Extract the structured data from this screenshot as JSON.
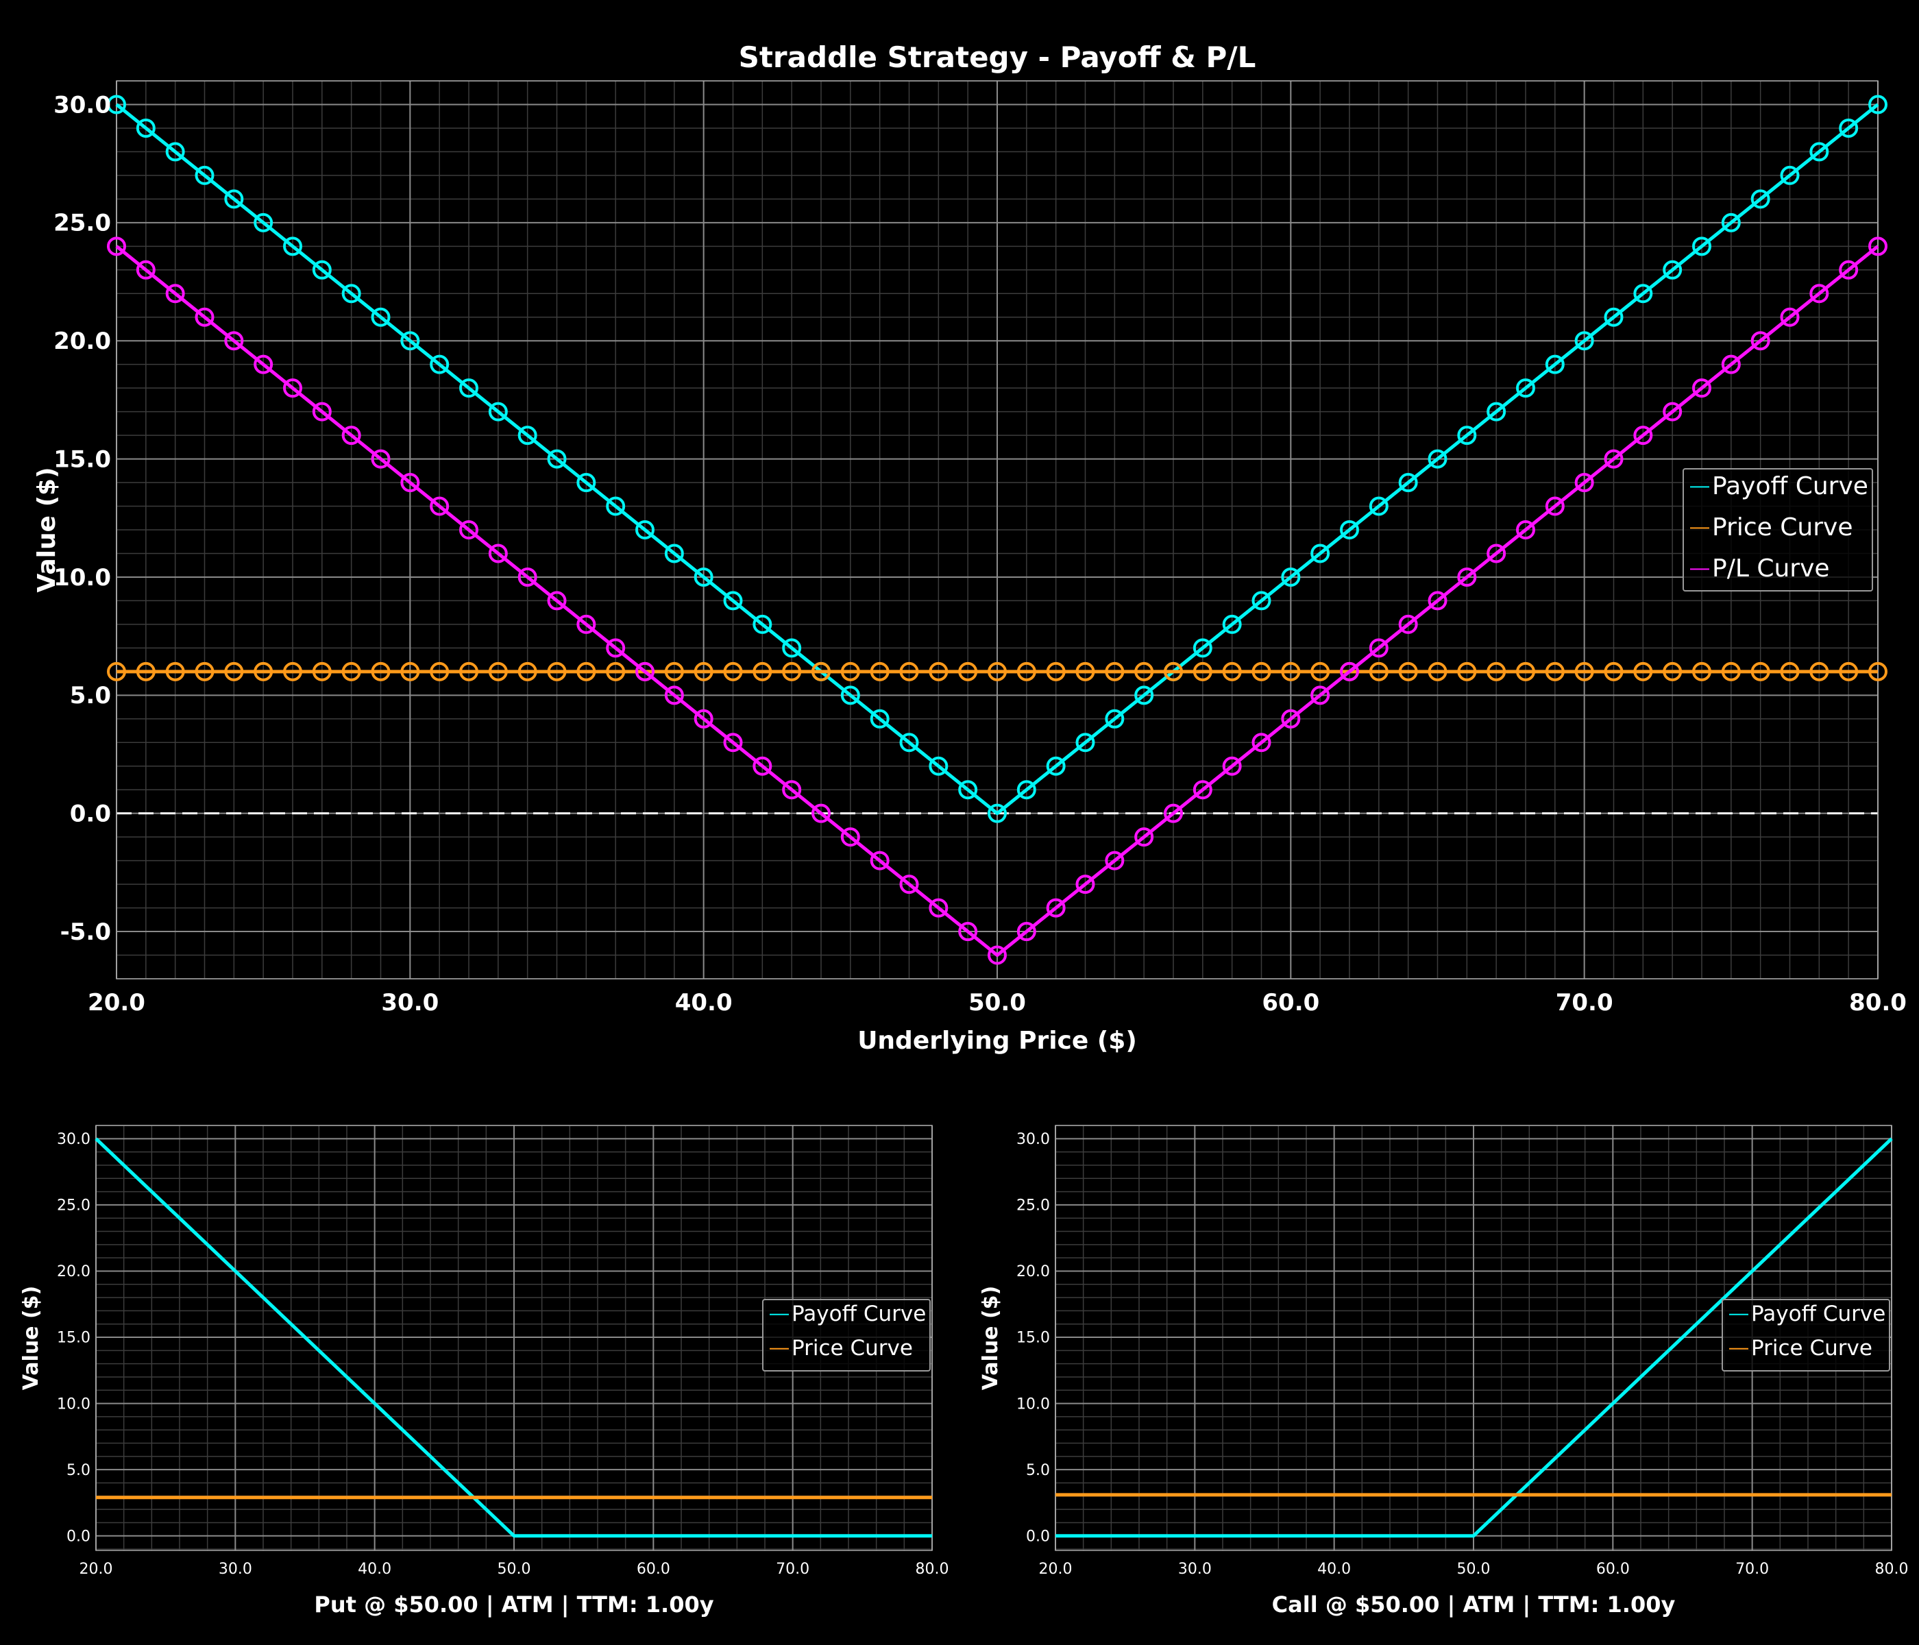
{
  "colors": {
    "background": "#000000",
    "payoff": "#00f5f5",
    "price": "#ff9a1a",
    "pl": "#ff10ff",
    "grid_major": "#8a8a8a",
    "grid_minor": "#3c3c3c",
    "zero_line": "#ffffff"
  },
  "chart_data": [
    {
      "type": "line",
      "title": "Straddle Strategy - Payoff & P/L",
      "xlabel": "Underlying Price ($)",
      "ylabel": "Value ($)",
      "xlim": [
        20,
        80
      ],
      "ylim": [
        -7,
        31
      ],
      "x_ticks": [
        "20.0",
        "30.0",
        "40.0",
        "50.0",
        "60.0",
        "70.0",
        "80.0"
      ],
      "y_ticks": [
        "-5.0",
        "0.0",
        "5.0",
        "10.0",
        "15.0",
        "20.0",
        "25.0",
        "30.0"
      ],
      "grid": true,
      "zero_line": "dashed",
      "legend": "center-right",
      "markers": "circle",
      "x": [
        20,
        21,
        22,
        23,
        24,
        25,
        26,
        27,
        28,
        29,
        30,
        31,
        32,
        33,
        34,
        35,
        36,
        37,
        38,
        39,
        40,
        41,
        42,
        43,
        44,
        45,
        46,
        47,
        48,
        49,
        50,
        51,
        52,
        53,
        54,
        55,
        56,
        57,
        58,
        59,
        60,
        61,
        62,
        63,
        64,
        65,
        66,
        67,
        68,
        69,
        70,
        71,
        72,
        73,
        74,
        75,
        76,
        77,
        78,
        79,
        80
      ],
      "series": [
        {
          "name": "Payoff Curve",
          "color": "#00f5f5",
          "values": [
            30,
            29,
            28,
            27,
            26,
            25,
            24,
            23,
            22,
            21,
            20,
            19,
            18,
            17,
            16,
            15,
            14,
            13,
            12,
            11,
            10,
            9,
            8,
            7,
            6,
            5,
            4,
            3,
            2,
            1,
            0,
            1,
            2,
            3,
            4,
            5,
            6,
            7,
            8,
            9,
            10,
            11,
            12,
            13,
            14,
            15,
            16,
            17,
            18,
            19,
            20,
            21,
            22,
            23,
            24,
            25,
            26,
            27,
            28,
            29,
            30
          ]
        },
        {
          "name": "Price Curve",
          "color": "#ff9a1a",
          "values": [
            6,
            6,
            6,
            6,
            6,
            6,
            6,
            6,
            6,
            6,
            6,
            6,
            6,
            6,
            6,
            6,
            6,
            6,
            6,
            6,
            6,
            6,
            6,
            6,
            6,
            6,
            6,
            6,
            6,
            6,
            6,
            6,
            6,
            6,
            6,
            6,
            6,
            6,
            6,
            6,
            6,
            6,
            6,
            6,
            6,
            6,
            6,
            6,
            6,
            6,
            6,
            6,
            6,
            6,
            6,
            6,
            6,
            6,
            6,
            6,
            6
          ]
        },
        {
          "name": "P/L Curve",
          "color": "#ff10ff",
          "values": [
            24,
            23,
            22,
            21,
            20,
            19,
            18,
            17,
            16,
            15,
            14,
            13,
            12,
            11,
            10,
            9,
            8,
            7,
            6,
            5,
            4,
            3,
            2,
            1,
            0,
            -1,
            -2,
            -3,
            -4,
            -5,
            -6,
            -5,
            -4,
            -3,
            -2,
            -1,
            0,
            1,
            2,
            3,
            4,
            5,
            6,
            7,
            8,
            9,
            10,
            11,
            12,
            13,
            14,
            15,
            16,
            17,
            18,
            19,
            20,
            21,
            22,
            23,
            24
          ]
        }
      ]
    },
    {
      "type": "line",
      "title": "Put @ $50.00 | ATM | TTM: 1.00y",
      "xlabel": "",
      "ylabel": "Value ($)",
      "xlim": [
        20,
        80
      ],
      "ylim": [
        -1.1,
        31
      ],
      "x_ticks": [
        "20.0",
        "30.0",
        "40.0",
        "50.0",
        "60.0",
        "70.0",
        "80.0"
      ],
      "y_ticks": [
        "0.0",
        "5.0",
        "10.0",
        "15.0",
        "20.0",
        "25.0",
        "30.0"
      ],
      "grid": true,
      "legend": "center-right",
      "x": [
        20,
        50,
        80
      ],
      "series": [
        {
          "name": "Payoff Curve",
          "color": "#00f5f5",
          "values": [
            30,
            0,
            0
          ]
        },
        {
          "name": "Price Curve",
          "color": "#ff9a1a",
          "values": [
            2.9,
            2.9,
            2.9
          ]
        }
      ]
    },
    {
      "type": "line",
      "title": "Call @ $50.00 | ATM | TTM: 1.00y",
      "xlabel": "",
      "ylabel": "Value ($)",
      "xlim": [
        20,
        80
      ],
      "ylim": [
        -1.1,
        31
      ],
      "x_ticks": [
        "20.0",
        "30.0",
        "40.0",
        "50.0",
        "60.0",
        "70.0",
        "80.0"
      ],
      "y_ticks": [
        "0.0",
        "5.0",
        "10.0",
        "15.0",
        "20.0",
        "25.0",
        "30.0"
      ],
      "grid": true,
      "legend": "center-right",
      "x": [
        20,
        50,
        80
      ],
      "series": [
        {
          "name": "Payoff Curve",
          "color": "#00f5f5",
          "values": [
            0,
            0,
            30
          ]
        },
        {
          "name": "Price Curve",
          "color": "#ff9a1a",
          "values": [
            3.1,
            3.1,
            3.1
          ]
        }
      ]
    }
  ]
}
